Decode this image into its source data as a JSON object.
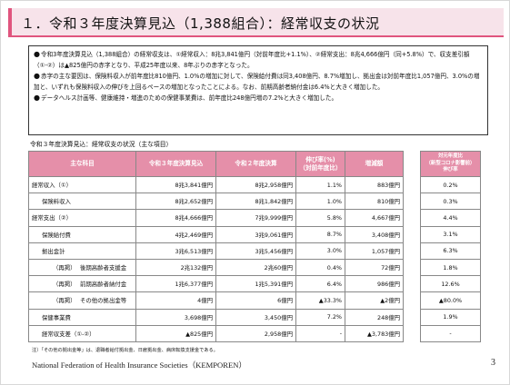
{
  "title": "１．令和３年度決算見込（1,388組合）：経常収支の状況",
  "summary": [
    "令和3年度決算見込（1,388組合）の経常収支は、①経常収入：8兆3,841億円（対前年度比+1.1%）、②経常支出：8兆4,666億円（同+5.8%）で、収支差引額（①-②）は▲825億円の赤字となり、平成25年度以来、8年ぶりの赤字となった。",
    "赤字の主な要因は、保険料収入が前年度比810億円、1.0%の増加に対して、保険給付費は同3,408億円、8.7%増加し、拠出金は対前年度比1,057億円、3.0%の増加と、いずれも保険料収入の伸びを上回るペースの増加となったことによる。なお、前期高齢者納付金は6.4%と大きく増加した。",
    "データヘルス計画等、健康維持・増進のための保健事業費は、前年度比248億円増の7.2%と大きく増加した。"
  ],
  "bullet": "●",
  "caption": "令和３年度決算見込：経常収支の状況（主な項目）",
  "table": {
    "headers": [
      "主な科目",
      "令和３年度決算見込",
      "令和２年度決算",
      "伸び率(%)\n（対前年度比）",
      "増減額"
    ],
    "rows": [
      {
        "label": "経常収入（①）",
        "indent": 0,
        "sub": "",
        "r3": "8兆3,841億円",
        "r2": "8兆2,958億円",
        "rate": "1.1%",
        "diff": "883億円",
        "yoy": "0.2%"
      },
      {
        "label": "保険料収入",
        "indent": 1,
        "sub": "",
        "r3": "8兆2,652億円",
        "r2": "8兆1,842億円",
        "rate": "1.0%",
        "diff": "810億円",
        "yoy": "0.3%"
      },
      {
        "label": "経常支出（②）",
        "indent": 0,
        "sub": "",
        "r3": "8兆4,666億円",
        "r2": "7兆9,999億円",
        "rate": "5.8%",
        "diff": "4,667億円",
        "yoy": "4.4%"
      },
      {
        "label": "保険給付費",
        "indent": 1,
        "sub": "",
        "r3": "4兆2,469億円",
        "r2": "3兆9,061億円",
        "rate": "8.7%",
        "diff": "3,408億円",
        "yoy": "3.1%"
      },
      {
        "label": "拠出金計",
        "indent": 1,
        "sub": "",
        "r3": "3兆6,513億円",
        "r2": "3兆5,456億円",
        "rate": "3.0%",
        "diff": "1,057億円",
        "yoy": "6.3%"
      },
      {
        "label": "後期高齢者支援金",
        "indent": 2,
        "sub": "（再掲）",
        "r3": "2兆132億円",
        "r2": "2兆60億円",
        "rate": "0.4%",
        "diff": "72億円",
        "yoy": "1.8%"
      },
      {
        "label": "前期高齢者納付金",
        "indent": 2,
        "sub": "（再掲）",
        "r3": "1兆6,377億円",
        "r2": "1兆5,391億円",
        "rate": "6.4%",
        "diff": "986億円",
        "yoy": "12.6%"
      },
      {
        "label": "その他の拠出金等",
        "indent": 2,
        "sub": "（再掲）",
        "r3": "4億円",
        "r2": "6億円",
        "rate": "▲33.3%",
        "diff": "▲2億円",
        "yoy": "▲80.0%"
      },
      {
        "label": "保健事業費",
        "indent": 1,
        "sub": "",
        "r3": "3,698億円",
        "r2": "3,450億円",
        "rate": "7.2%",
        "diff": "248億円",
        "yoy": "1.9%"
      },
      {
        "label": "経常収支差（①-②）",
        "indent": 1,
        "sub": "",
        "r3": "▲825億円",
        "r2": "2,958億円",
        "rate": "-",
        "diff": "▲3,783億円",
        "yoy": "-"
      }
    ]
  },
  "side_header": "対元年度比\n（新型コロナ影響前）\n伸び率",
  "footnote": "注）「その他の拠出金等」は、退職者給付拠出金、日雇拠出金、病床転換支援金である。",
  "organization": "National Federation of Health Insurance Societies（KEMPOREN）",
  "page_number": "3"
}
